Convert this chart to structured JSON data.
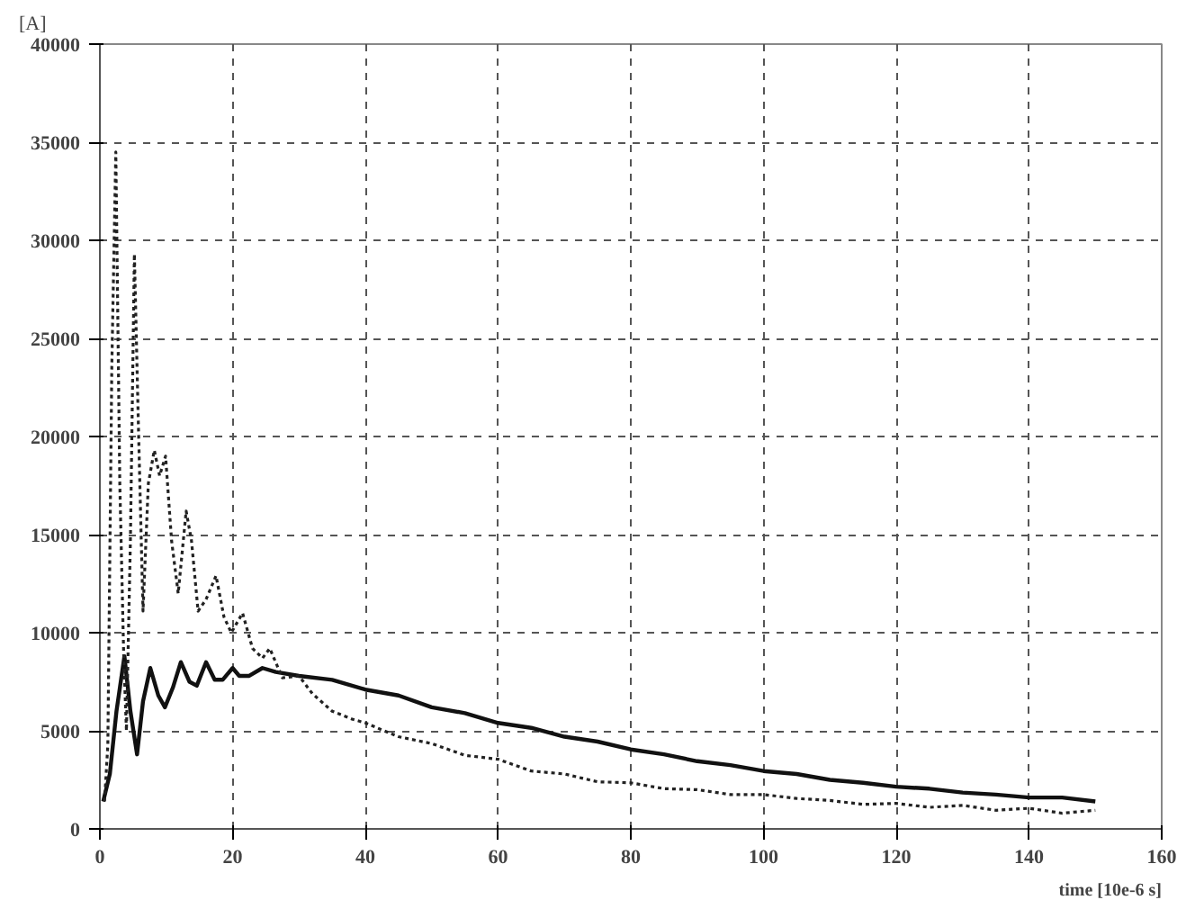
{
  "chart_data": {
    "type": "line",
    "xlabel": "time [10e-6 s]",
    "ylabel": "[A]",
    "xlim": [
      0,
      160
    ],
    "ylim": [
      0,
      40000
    ],
    "xticks": [
      0,
      20,
      40,
      60,
      80,
      100,
      120,
      140,
      160
    ],
    "yticks": [
      0,
      5000,
      10000,
      15000,
      20000,
      25000,
      30000,
      35000,
      40000
    ],
    "grid": true,
    "marker": "none",
    "series": [
      {
        "color": "#111111",
        "line_style": "solid",
        "x": [
          0.5,
          1.5,
          2.5,
          3.7,
          4.6,
          5.6,
          6.5,
          7.6,
          8.8,
          9.8,
          11,
          12.2,
          13.5,
          14.6,
          16,
          17.3,
          18.5,
          20,
          21,
          22.5,
          24.5,
          26.5,
          30,
          35,
          40,
          45,
          50,
          55,
          60,
          65,
          70,
          75,
          80,
          85,
          90,
          95,
          100,
          105,
          110,
          115,
          120,
          125,
          130,
          135,
          140,
          145,
          150
        ],
        "values": [
          1400,
          2800,
          6000,
          8800,
          6000,
          3800,
          6500,
          8200,
          6800,
          6200,
          7200,
          8500,
          7500,
          7300,
          8500,
          7600,
          7600,
          8200,
          7800,
          7800,
          8200,
          8000,
          7800,
          7600,
          7100,
          6800,
          6200,
          5900,
          5400,
          5150,
          4700,
          4450,
          4050,
          3800,
          3450,
          3250,
          2950,
          2800,
          2500,
          2350,
          2150,
          2050,
          1850,
          1750,
          1600,
          1600,
          1400
        ]
      },
      {
        "color": "#222222",
        "line_style": "dotted",
        "x": [
          0.7,
          1.2,
          1.8,
          2.4,
          3,
          3.6,
          4,
          4.6,
          5.2,
          5.8,
          6.5,
          7.3,
          8.2,
          9,
          9.9,
          10.8,
          11.8,
          13,
          13.8,
          14.8,
          16,
          17.5,
          18.7,
          19.8,
          21.5,
          23,
          24.5,
          25.6,
          27.5,
          30,
          32,
          35,
          38,
          40,
          45,
          50,
          55,
          60,
          65,
          70,
          75,
          80,
          85,
          90,
          95,
          100,
          105,
          110,
          115,
          120,
          125,
          130,
          135,
          140,
          145,
          150
        ],
        "values": [
          1400,
          4300,
          23600,
          34500,
          17600,
          8700,
          5000,
          14700,
          29300,
          20600,
          11100,
          17600,
          19300,
          18000,
          19000,
          14700,
          12000,
          16200,
          14700,
          11100,
          11700,
          12900,
          10800,
          10000,
          11000,
          9200,
          8700,
          9200,
          7700,
          7800,
          6900,
          6000,
          5600,
          5400,
          4700,
          4350,
          3750,
          3550,
          2950,
          2800,
          2400,
          2350,
          2050,
          2000,
          1750,
          1750,
          1550,
          1450,
          1250,
          1300,
          1100,
          1200,
          950,
          1050,
          800,
          950
        ]
      }
    ]
  }
}
